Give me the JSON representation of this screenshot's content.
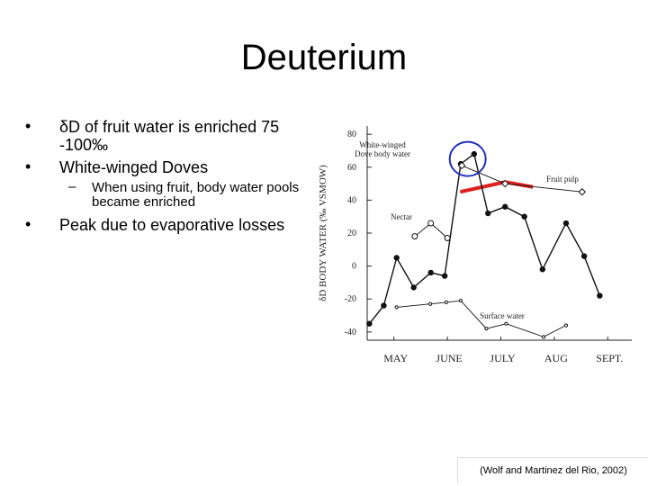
{
  "title": "Deuterium",
  "bullets": [
    "δD of fruit water is enriched 75 -100‰",
    "White-winged Doves",
    "Peak due to evaporative losses"
  ],
  "sub_bullets": [
    "When using fruit, body water pools became enriched"
  ],
  "citation": "(Wolf and Martinez del Rio, 2002)",
  "chart_data": {
    "type": "line",
    "y_label": "δD BODY WATER (‰ VSMOW)",
    "xlim": [
      -0.5,
      4.45
    ],
    "xticks": [
      {
        "value": 0,
        "label": "MAY"
      },
      {
        "value": 1,
        "label": "JUNE"
      },
      {
        "value": 2,
        "label": "JULY"
      },
      {
        "value": 3,
        "label": "AUG"
      },
      {
        "value": 4,
        "label": "SEPT."
      }
    ],
    "ylim": [
      -45,
      85
    ],
    "yticks": [
      80,
      60,
      40,
      20,
      0,
      -20,
      -40
    ],
    "series": [
      {
        "name": "White-winged Dove body water",
        "color": "#111111",
        "marker": "filled-circle",
        "x": [
          -0.46,
          -0.19,
          0.05,
          0.37,
          0.69,
          0.95,
          1.25,
          1.5,
          1.76,
          2.08,
          2.44,
          2.78,
          3.22,
          3.56,
          3.85
        ],
        "values": [
          -35,
          -24,
          5,
          -13,
          -4,
          -6,
          62,
          68,
          32,
          36,
          30,
          -2,
          26,
          6,
          -18
        ]
      },
      {
        "name": "Nectar",
        "color": "#111111",
        "marker": "open-circle",
        "x": [
          0.39,
          0.69,
          1.0
        ],
        "values": [
          18,
          26,
          17
        ]
      },
      {
        "name": "Fruit pulp",
        "color": "#111111",
        "marker": "open-diamond",
        "x": [
          1.27,
          2.08,
          3.52
        ],
        "values": [
          61,
          50,
          45
        ]
      },
      {
        "name": "Surface water",
        "color": "#111111",
        "marker": "small-dot",
        "x": [
          0.05,
          0.68,
          0.98,
          1.25,
          1.73,
          2.1,
          2.8,
          3.22
        ],
        "values": [
          -25,
          -23,
          -22,
          -21,
          -38,
          -35,
          -43,
          -36
        ]
      }
    ]
  }
}
